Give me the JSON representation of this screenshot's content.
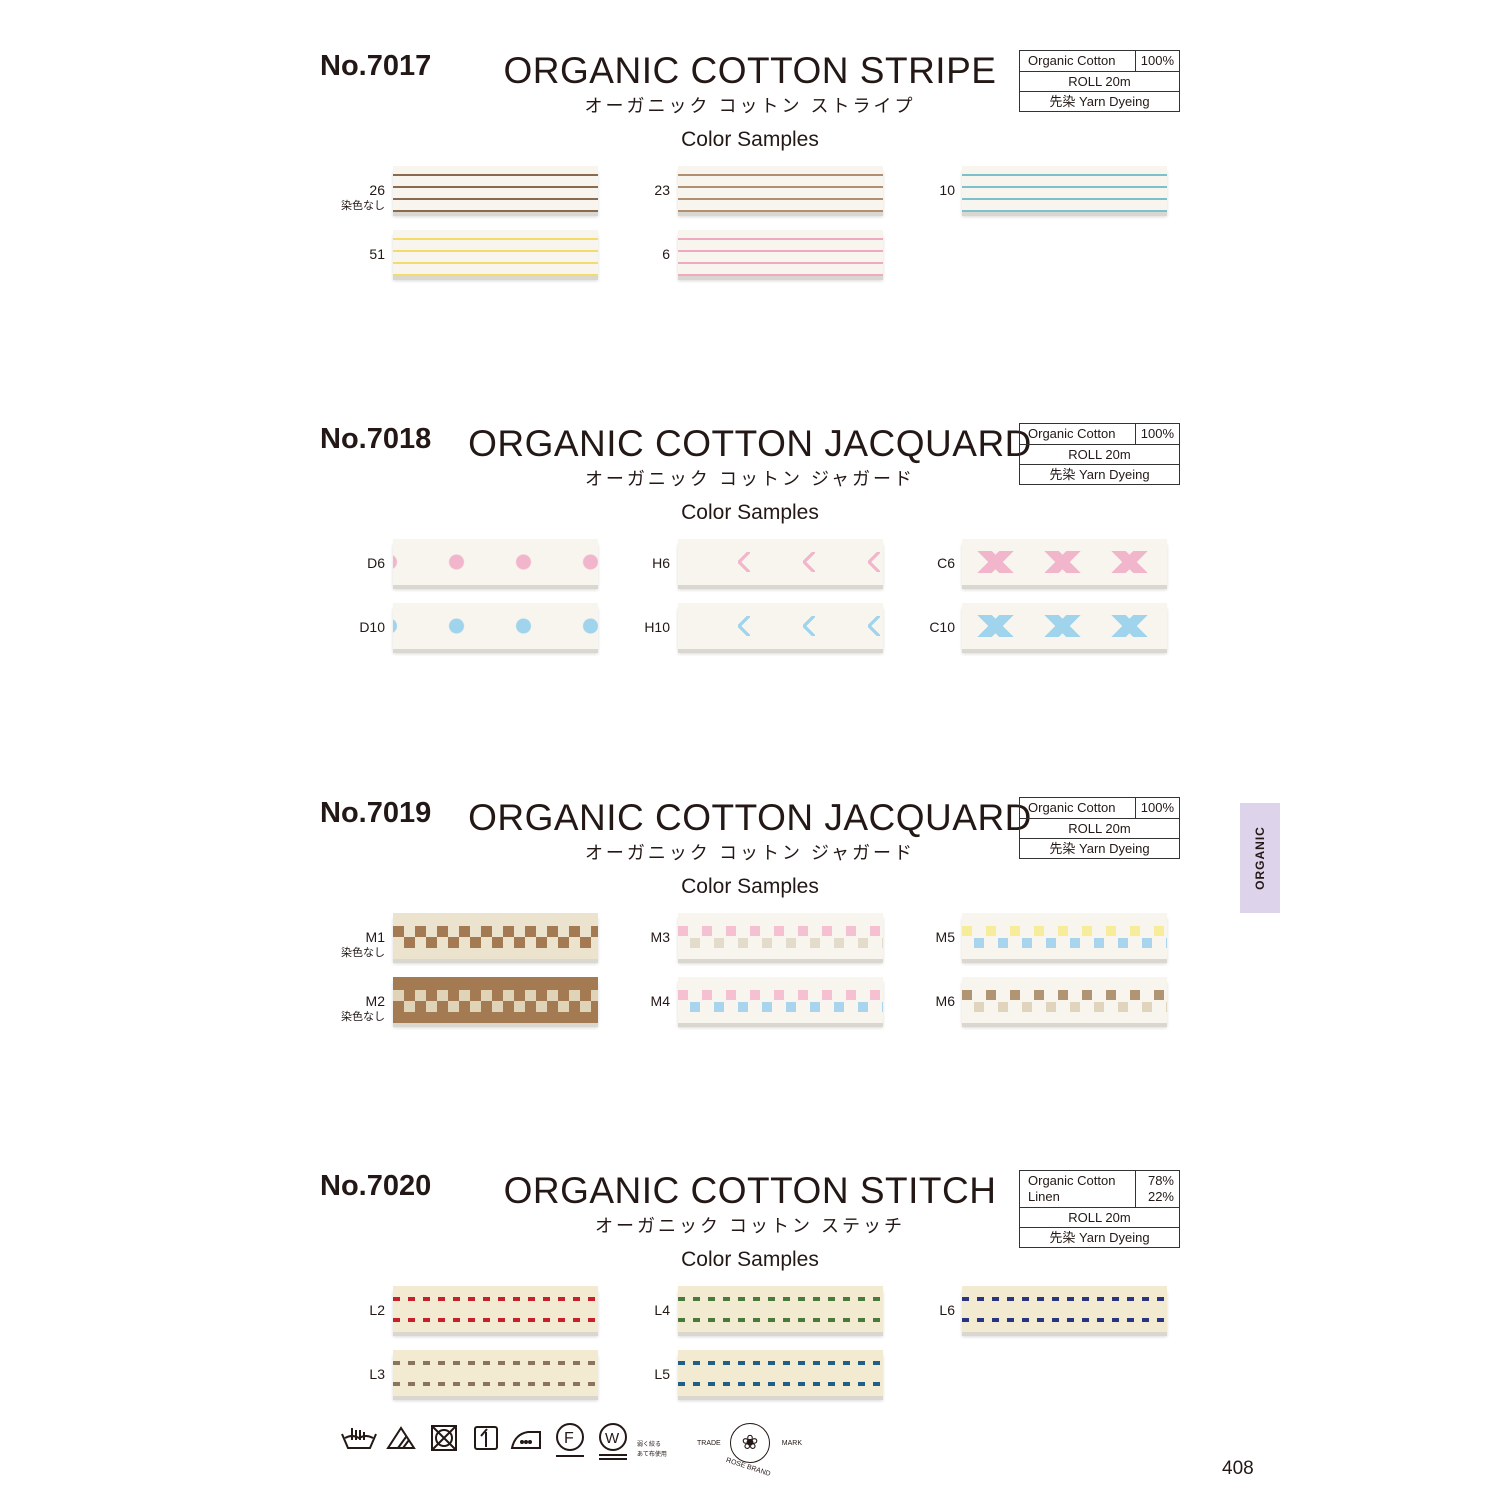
{
  "sections": [
    {
      "number": "No.7017",
      "title": "ORGANIC COTTON STRIPE",
      "title_jp": "オーガニック コットン ストライプ",
      "color_samples_label": "Color Samples",
      "info": {
        "material": "Organic Cotton",
        "percent": "100%",
        "material2": "",
        "percent2": "",
        "roll": "ROLL  20m",
        "dyeing": "先染  Yarn Dyeing"
      },
      "samples": [
        {
          "code": "26",
          "note": "染色なし",
          "pattern": "stripe",
          "color": "#8a6a4e",
          "base": "#f7f5ee"
        },
        {
          "code": "23",
          "note": "",
          "pattern": "stripe",
          "color": "#b09070",
          "base": "#f7f5ee"
        },
        {
          "code": "10",
          "note": "",
          "pattern": "stripe",
          "color": "#7cc0cc",
          "base": "#f7f5ee"
        },
        {
          "code": "51",
          "note": "",
          "pattern": "stripe",
          "color": "#f3dc6a",
          "base": "#f7f5ee"
        },
        {
          "code": "6",
          "note": "",
          "pattern": "stripe",
          "color": "#eeaac0",
          "base": "#f7f5ee"
        }
      ]
    },
    {
      "number": "No.7018",
      "title": "ORGANIC COTTON JACQUARD",
      "title_jp": "オーガニック コットン ジャガード",
      "color_samples_label": "Color Samples",
      "info": {
        "material": "Organic Cotton",
        "percent": "100%",
        "material2": "",
        "percent2": "",
        "roll": "ROLL  20m",
        "dyeing": "先染  Yarn Dyeing"
      },
      "samples": [
        {
          "code": "D6",
          "note": "",
          "pattern": "diamond",
          "color": "#f2b6cc",
          "base": "#f7f5ee"
        },
        {
          "code": "H6",
          "note": "",
          "pattern": "chevron",
          "color": "#f2b6cc",
          "base": "#f7f5ee"
        },
        {
          "code": "C6",
          "note": "",
          "pattern": "cross",
          "color": "#f2b6cc",
          "base": "#f7f5ee"
        },
        {
          "code": "D10",
          "note": "",
          "pattern": "diamond",
          "color": "#9fd4ec",
          "base": "#f7f5ee"
        },
        {
          "code": "H10",
          "note": "",
          "pattern": "chevron",
          "color": "#9fd4ec",
          "base": "#f7f5ee"
        },
        {
          "code": "C10",
          "note": "",
          "pattern": "cross",
          "color": "#9fd4ec",
          "base": "#f7f5ee"
        }
      ]
    },
    {
      "number": "No.7019",
      "title": "ORGANIC COTTON JACQUARD",
      "title_jp": "オーガニック コットン ジャガード",
      "color_samples_label": "Color Samples",
      "info": {
        "material": "Organic Cotton",
        "percent": "100%",
        "material2": "",
        "percent2": "",
        "roll": "ROLL  20m",
        "dyeing": "先染  Yarn Dyeing"
      },
      "samples": [
        {
          "code": "M1",
          "note": "染色なし",
          "pattern": "check",
          "color": "#a47a52",
          "base": "#ece3cf"
        },
        {
          "code": "M3",
          "note": "",
          "pattern": "check2",
          "color": "#f4c0d2",
          "color2": "#e4dccb",
          "base": "#f7f5ee"
        },
        {
          "code": "M5",
          "note": "",
          "pattern": "check2",
          "color": "#f6ec9a",
          "color2": "#a8d4ee",
          "base": "#f7f5ee"
        },
        {
          "code": "M2",
          "note": "染色なし",
          "pattern": "check",
          "color": "#e0d4b8",
          "base": "#a47a52"
        },
        {
          "code": "M4",
          "note": "",
          "pattern": "check2",
          "color": "#f4c0d2",
          "color2": "#a8d4ee",
          "base": "#f7f5ee"
        },
        {
          "code": "M6",
          "note": "",
          "pattern": "check2",
          "color": "#b09474",
          "color2": "#e0d4bc",
          "base": "#f7f5ee"
        }
      ]
    },
    {
      "number": "No.7020",
      "title": "ORGANIC COTTON STITCH",
      "title_jp": "オーガニック コットン ステッチ",
      "color_samples_label": "Color Samples",
      "info": {
        "material": "Organic Cotton",
        "percent": "78%",
        "material2": "Linen",
        "percent2": "22%",
        "roll": "ROLL  20m",
        "dyeing": "先染  Yarn Dyeing"
      },
      "samples": [
        {
          "code": "L2",
          "note": "",
          "pattern": "stitch",
          "color": "#c8202a",
          "base": "#f3ead2"
        },
        {
          "code": "L4",
          "note": "",
          "pattern": "stitch",
          "color": "#4a7a3a",
          "base": "#f3ead2"
        },
        {
          "code": "L6",
          "note": "",
          "pattern": "stitch",
          "color": "#2a3480",
          "base": "#f3ead2"
        },
        {
          "code": "L3",
          "note": "",
          "pattern": "stitch",
          "color": "#8a7460",
          "base": "#f3ead2"
        },
        {
          "code": "L5",
          "note": "",
          "pattern": "stitch",
          "color": "#1f5f88",
          "base": "#f3ead2"
        }
      ]
    }
  ],
  "side_tab": {
    "label": "ORGANIC",
    "color": "#ddd3ea"
  },
  "care": {
    "icons": [
      "hand-wash-icon",
      "bleach-allowed-icon",
      "no-tumble-dry-icon",
      "line-dry-shade-icon",
      "iron-low-icon",
      "dry-clean-f-icon",
      "wet-clean-w-icon"
    ],
    "note_line1": "弱く絞る",
    "note_line2": "あて布使用"
  },
  "trademark": {
    "top_left": "TRADE",
    "top_right": "MARK",
    "bottom": "ROSE BRAND"
  },
  "page_number": "408"
}
